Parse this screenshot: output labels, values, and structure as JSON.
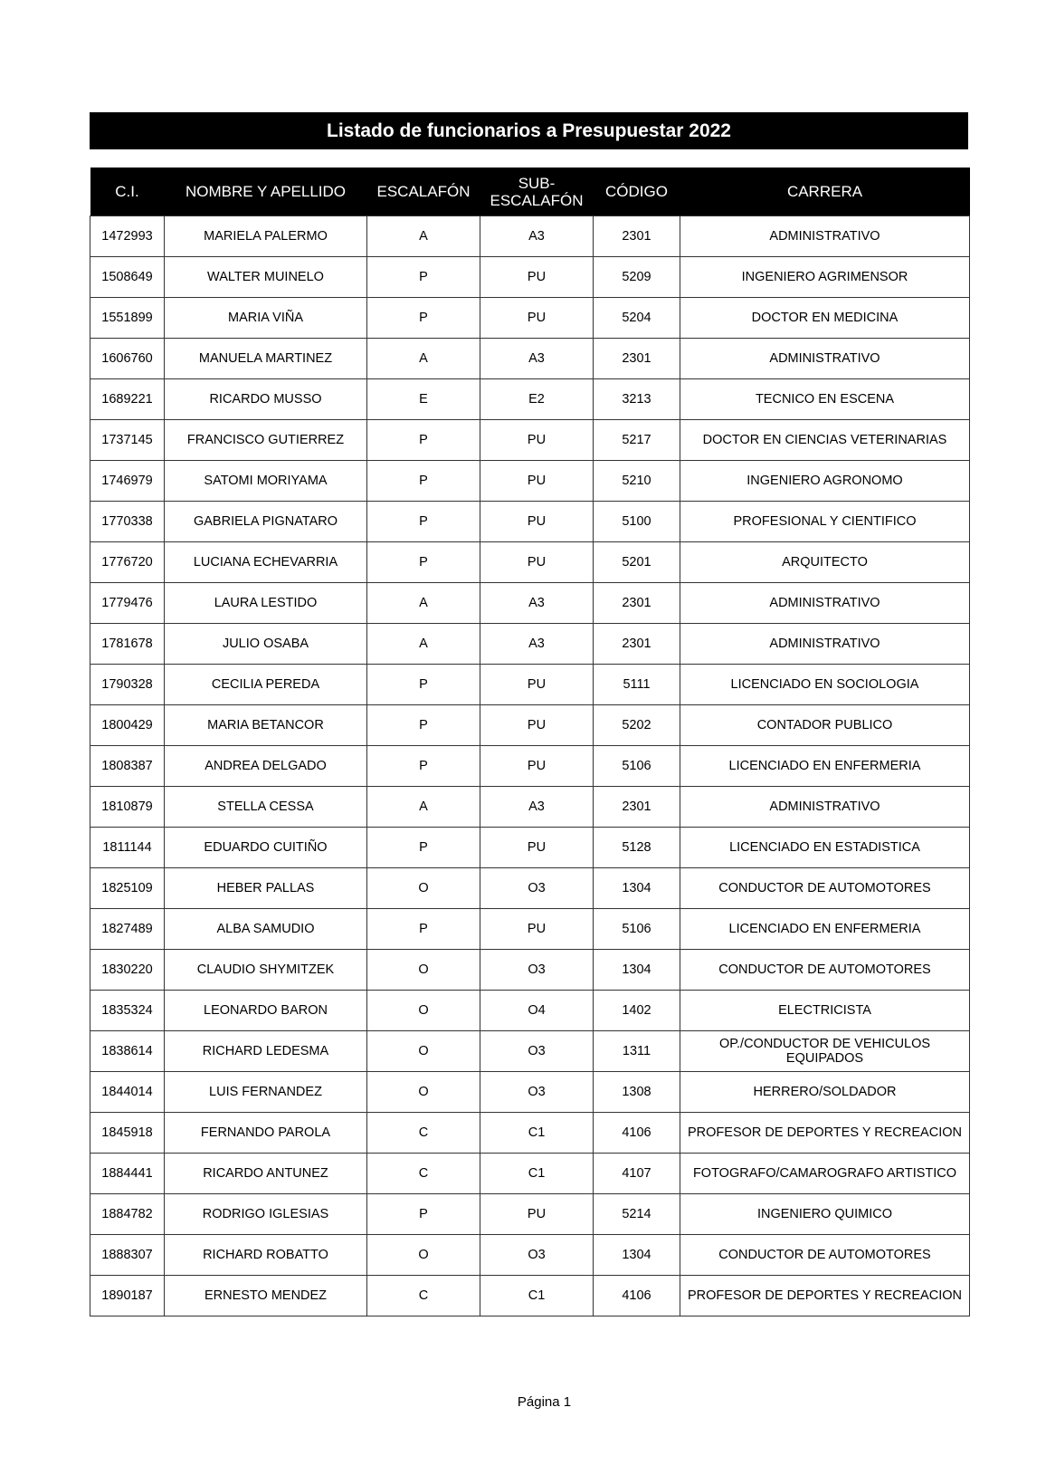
{
  "title": "Listado de funcionarios a Presupuestar 2022",
  "columns": [
    "C.I.",
    "NOMBRE Y APELLIDO",
    "ESCALAFÓN",
    "SUB-\nESCALAFÓN",
    "CÓDIGO",
    "CARRERA"
  ],
  "rows": [
    [
      "1472993",
      "MARIELA PALERMO",
      "A",
      "A3",
      "2301",
      "ADMINISTRATIVO"
    ],
    [
      "1508649",
      "WALTER MUINELO",
      "P",
      "PU",
      "5209",
      "INGENIERO AGRIMENSOR"
    ],
    [
      "1551899",
      "MARIA VIÑA",
      "P",
      "PU",
      "5204",
      "DOCTOR EN MEDICINA"
    ],
    [
      "1606760",
      "MANUELA MARTINEZ",
      "A",
      "A3",
      "2301",
      "ADMINISTRATIVO"
    ],
    [
      "1689221",
      "RICARDO MUSSO",
      "E",
      "E2",
      "3213",
      "TECNICO EN ESCENA"
    ],
    [
      "1737145",
      "FRANCISCO GUTIERREZ",
      "P",
      "PU",
      "5217",
      "DOCTOR EN CIENCIAS VETERINARIAS"
    ],
    [
      "1746979",
      "SATOMI MORIYAMA",
      "P",
      "PU",
      "5210",
      "INGENIERO AGRONOMO"
    ],
    [
      "1770338",
      "GABRIELA PIGNATARO",
      "P",
      "PU",
      "5100",
      "PROFESIONAL Y CIENTIFICO"
    ],
    [
      "1776720",
      "LUCIANA ECHEVARRIA",
      "P",
      "PU",
      "5201",
      "ARQUITECTO"
    ],
    [
      "1779476",
      "LAURA LESTIDO",
      "A",
      "A3",
      "2301",
      "ADMINISTRATIVO"
    ],
    [
      "1781678",
      "JULIO OSABA",
      "A",
      "A3",
      "2301",
      "ADMINISTRATIVO"
    ],
    [
      "1790328",
      "CECILIA PEREDA",
      "P",
      "PU",
      "5111",
      "LICENCIADO EN SOCIOLOGIA"
    ],
    [
      "1800429",
      "MARIA BETANCOR",
      "P",
      "PU",
      "5202",
      "CONTADOR PUBLICO"
    ],
    [
      "1808387",
      "ANDREA DELGADO",
      "P",
      "PU",
      "5106",
      "LICENCIADO EN ENFERMERIA"
    ],
    [
      "1810879",
      "STELLA CESSA",
      "A",
      "A3",
      "2301",
      "ADMINISTRATIVO"
    ],
    [
      "1811144",
      "EDUARDO CUITIÑO",
      "P",
      "PU",
      "5128",
      "LICENCIADO EN ESTADISTICA"
    ],
    [
      "1825109",
      "HEBER PALLAS",
      "O",
      "O3",
      "1304",
      "CONDUCTOR DE AUTOMOTORES"
    ],
    [
      "1827489",
      "ALBA SAMUDIO",
      "P",
      "PU",
      "5106",
      "LICENCIADO EN ENFERMERIA"
    ],
    [
      "1830220",
      "CLAUDIO SHYMITZEK",
      "O",
      "O3",
      "1304",
      "CONDUCTOR DE AUTOMOTORES"
    ],
    [
      "1835324",
      "LEONARDO BARON",
      "O",
      "O4",
      "1402",
      "ELECTRICISTA"
    ],
    [
      "1838614",
      "RICHARD LEDESMA",
      "O",
      "O3",
      "1311",
      "OP./CONDUCTOR DE VEHICULOS EQUIPADOS"
    ],
    [
      "1844014",
      "LUIS FERNANDEZ",
      "O",
      "O3",
      "1308",
      "HERRERO/SOLDADOR"
    ],
    [
      "1845918",
      "FERNANDO PAROLA",
      "C",
      "C1",
      "4106",
      "PROFESOR DE DEPORTES Y RECREACION"
    ],
    [
      "1884441",
      "RICARDO ANTUNEZ",
      "C",
      "C1",
      "4107",
      "FOTOGRAFO/CAMAROGRAFO ARTISTICO"
    ],
    [
      "1884782",
      "RODRIGO IGLESIAS",
      "P",
      "PU",
      "5214",
      "INGENIERO QUIMICO"
    ],
    [
      "1888307",
      "RICHARD ROBATTO",
      "O",
      "O3",
      "1304",
      "CONDUCTOR DE AUTOMOTORES"
    ],
    [
      "1890187",
      "ERNESTO MENDEZ",
      "C",
      "C1",
      "4106",
      "PROFESOR DE DEPORTES Y RECREACION"
    ]
  ],
  "footer": "Página 1"
}
